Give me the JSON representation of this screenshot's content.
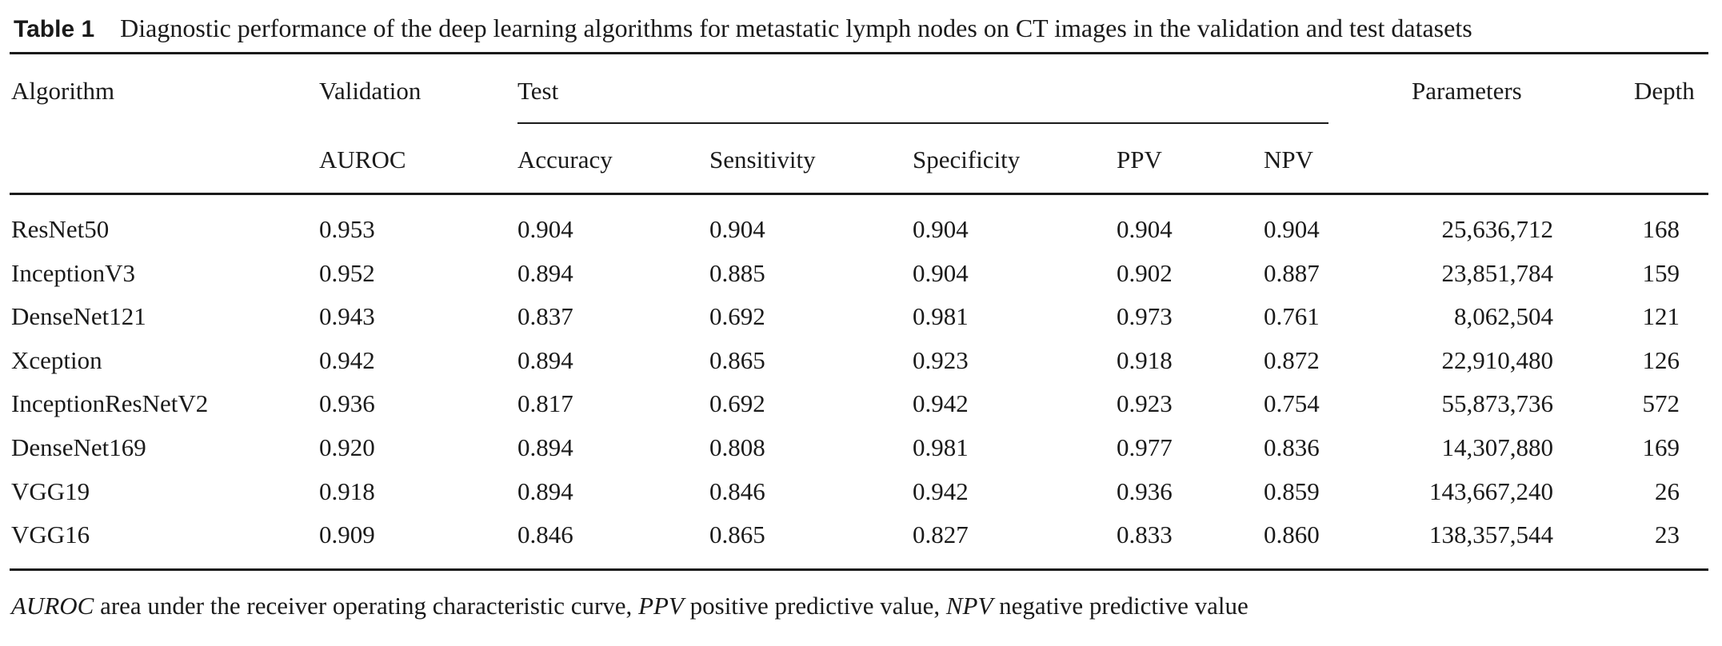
{
  "table": {
    "label": "Table 1",
    "caption": "Diagnostic performance of the deep learning algorithms for metastatic lymph nodes on CT images in the validation and test datasets",
    "header": {
      "algorithm": "Algorithm",
      "validation": "Validation",
      "test": "Test",
      "parameters": "Parameters",
      "depth": "Depth",
      "auroc": "AUROC",
      "accuracy": "Accuracy",
      "sensitivity": "Sensitivity",
      "specificity": "Specificity",
      "ppv": "PPV",
      "npv": "NPV"
    },
    "rows": [
      {
        "algorithm": "ResNet50",
        "auroc": "0.953",
        "accuracy": "0.904",
        "sensitivity": "0.904",
        "specificity": "0.904",
        "ppv": "0.904",
        "npv": "0.904",
        "parameters": "25,636,712",
        "depth": "168"
      },
      {
        "algorithm": "InceptionV3",
        "auroc": "0.952",
        "accuracy": "0.894",
        "sensitivity": "0.885",
        "specificity": "0.904",
        "ppv": "0.902",
        "npv": "0.887",
        "parameters": "23,851,784",
        "depth": "159"
      },
      {
        "algorithm": "DenseNet121",
        "auroc": "0.943",
        "accuracy": "0.837",
        "sensitivity": "0.692",
        "specificity": "0.981",
        "ppv": "0.973",
        "npv": "0.761",
        "parameters": "8,062,504",
        "depth": "121"
      },
      {
        "algorithm": "Xception",
        "auroc": "0.942",
        "accuracy": "0.894",
        "sensitivity": "0.865",
        "specificity": "0.923",
        "ppv": "0.918",
        "npv": "0.872",
        "parameters": "22,910,480",
        "depth": "126"
      },
      {
        "algorithm": "InceptionResNetV2",
        "auroc": "0.936",
        "accuracy": "0.817",
        "sensitivity": "0.692",
        "specificity": "0.942",
        "ppv": "0.923",
        "npv": "0.754",
        "parameters": "55,873,736",
        "depth": "572"
      },
      {
        "algorithm": "DenseNet169",
        "auroc": "0.920",
        "accuracy": "0.894",
        "sensitivity": "0.808",
        "specificity": "0.981",
        "ppv": "0.977",
        "npv": "0.836",
        "parameters": "14,307,880",
        "depth": "169"
      },
      {
        "algorithm": "VGG19",
        "auroc": "0.918",
        "accuracy": "0.894",
        "sensitivity": "0.846",
        "specificity": "0.942",
        "ppv": "0.936",
        "npv": "0.859",
        "parameters": "143,667,240",
        "depth": "26"
      },
      {
        "algorithm": "VGG16",
        "auroc": "0.909",
        "accuracy": "0.846",
        "sensitivity": "0.865",
        "specificity": "0.827",
        "ppv": "0.833",
        "npv": "0.860",
        "parameters": "138,357,544",
        "depth": "23"
      }
    ],
    "footnote": [
      {
        "term": "AUROC",
        "definition": " area under the receiver operating characteristic curve, "
      },
      {
        "term": "PPV",
        "definition": " positive predictive value, "
      },
      {
        "term": "NPV",
        "definition": " negative predictive value"
      }
    ]
  }
}
